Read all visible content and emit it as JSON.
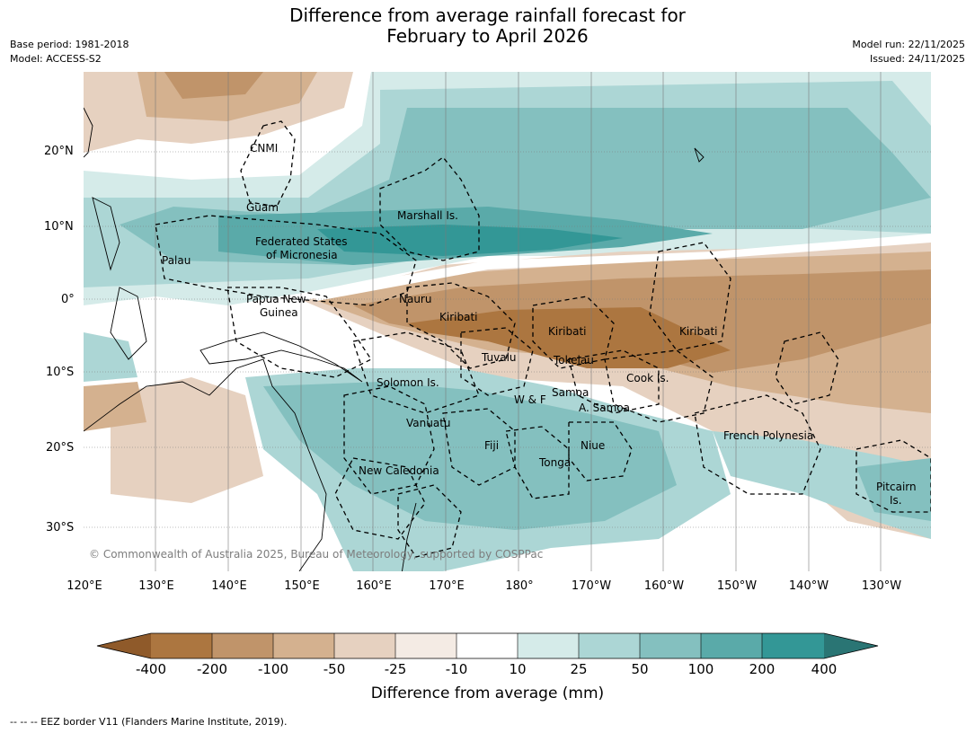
{
  "title_line1": "Difference from average rainfall forecast for",
  "title_line2": "February to April 2026",
  "meta_left": [
    "Base period: 1981-2018",
    "Model: ACCESS-S2"
  ],
  "meta_right": [
    "Model run: 22/11/2025",
    "Issued: 24/11/2025"
  ],
  "lat_labels": [
    "20°N",
    "10°N",
    "0°",
    "10°S",
    "20°S",
    "30°S"
  ],
  "lon_labels": [
    "120°E",
    "130°E",
    "140°E",
    "150°E",
    "160°E",
    "170°E",
    "180°",
    "170°W",
    "160°W",
    "150°W",
    "140°W",
    "130°W"
  ],
  "places": {
    "cnmi": "CNMI",
    "guam": "Guam",
    "marshall": "Marshall Is.",
    "fsm1": "Federated States",
    "fsm2": "of Micronesia",
    "palau": "Palau",
    "png1": "Papua New",
    "png2": "Guinea",
    "nauru": "Nauru",
    "kiribati1": "Kiribati",
    "kiribati2": "Kiribati",
    "kiribati3": "Kiribati",
    "tuvalu": "Tuvalu",
    "tokelau": "Tokelau",
    "cook": "Cook Is.",
    "solomon": "Solomon Is.",
    "wf": "W & F",
    "samoa": "Samoa",
    "asamoa": "A. Samoa",
    "vanuatu": "Vanuatu",
    "fiji": "Fiji",
    "niue": "Niue",
    "tonga": "Tonga",
    "newcal": "New Caledonia",
    "frpoly": "French Polynesia",
    "pitcairn1": "Pitcairn",
    "pitcairn2": "Is."
  },
  "copyright": "© Commonwealth of Australia 2025, Bureau of Meteorology, supported by COSPPac",
  "colorbar": {
    "ticks": [
      "-400",
      "-200",
      "-100",
      "-50",
      "-25",
      "-10",
      "10",
      "25",
      "50",
      "100",
      "200",
      "400"
    ],
    "colors": [
      "#8f5a2a",
      "#ac7640",
      "#c0946a",
      "#d4b18f",
      "#e6d1c0",
      "#f4ebe4",
      "#ffffff",
      "#d5ebe9",
      "#acd6d5",
      "#84c0bf",
      "#5aaaa9",
      "#339796",
      "#2a7574"
    ],
    "label": "Difference from average (mm)"
  },
  "footnote": "--  --  -- EEZ border V11 (Flanders Marine Institute, 2019)."
}
